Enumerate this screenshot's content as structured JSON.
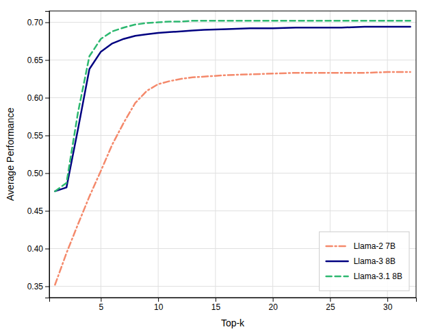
{
  "chart_data": {
    "type": "line",
    "xlabel": "Top-k",
    "ylabel": "Average Performance",
    "x": [
      1,
      2,
      3,
      4,
      5,
      6,
      7,
      8,
      9,
      10,
      11,
      12,
      13,
      14,
      16,
      18,
      20,
      22,
      24,
      26,
      28,
      30,
      32
    ],
    "series": [
      {
        "name": "Llama-2 7B",
        "color": "#f4896b",
        "line_style": "dashdot",
        "values": [
          0.352,
          0.394,
          0.432,
          0.469,
          0.503,
          0.538,
          0.567,
          0.593,
          0.609,
          0.618,
          0.622,
          0.625,
          0.627,
          0.628,
          0.63,
          0.631,
          0.632,
          0.633,
          0.633,
          0.633,
          0.633,
          0.634,
          0.634
        ]
      },
      {
        "name": "Llama-3 8B",
        "color": "#000080",
        "line_style": "solid",
        "values": [
          0.476,
          0.481,
          0.558,
          0.638,
          0.661,
          0.672,
          0.678,
          0.682,
          0.684,
          0.686,
          0.687,
          0.688,
          0.689,
          0.69,
          0.691,
          0.692,
          0.692,
          0.693,
          0.693,
          0.693,
          0.694,
          0.694,
          0.694
        ]
      },
      {
        "name": "Llama-3.1 8B",
        "color": "#2db870",
        "line_style": "dashed",
        "values": [
          0.476,
          0.487,
          0.58,
          0.655,
          0.678,
          0.688,
          0.693,
          0.697,
          0.699,
          0.7,
          0.701,
          0.701,
          0.702,
          0.702,
          0.702,
          0.702,
          0.702,
          0.702,
          0.702,
          0.702,
          0.702,
          0.702,
          0.702
        ]
      }
    ],
    "xlim": [
      0.5,
      32.5
    ],
    "ylim": [
      0.335,
      0.715
    ],
    "xticks": [
      5,
      10,
      15,
      20,
      25,
      30
    ],
    "yticks": [
      0.35,
      {
        "value": 0.4,
        "label": "0.40"
      },
      0.45,
      {
        "value": 0.5,
        "label": "0.50"
      },
      0.55,
      {
        "value": 0.6,
        "label": "0.60"
      },
      0.65,
      {
        "value": 0.7,
        "label": "0.70"
      }
    ],
    "grid": true,
    "legend": "lower right"
  }
}
